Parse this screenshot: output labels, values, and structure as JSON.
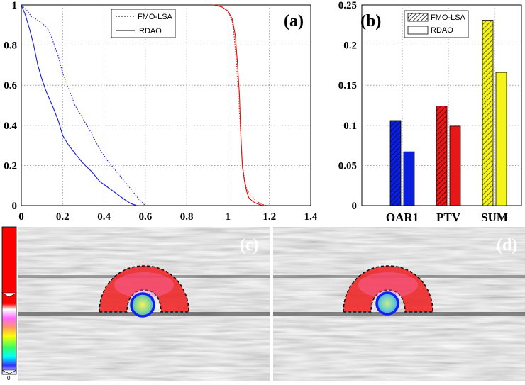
{
  "chart_data": [
    {
      "panel": "(a)",
      "type": "line",
      "xlim": [
        0,
        1.4
      ],
      "ylim": [
        0,
        1
      ],
      "xticks": [
        "0",
        "0.2",
        "0.4",
        "0.6",
        "0.8",
        "1",
        "1.2",
        "1.4"
      ],
      "yticks": [
        "0",
        "0.2",
        "0.4",
        "0.6",
        "0.8",
        "1"
      ],
      "grid": true,
      "legend": "top-left",
      "series": [
        {
          "name": "FMO-LSA",
          "style": "dotted",
          "color": "#1a1adf",
          "x": [
            0,
            0.03,
            0.05,
            0.07,
            0.1,
            0.13,
            0.15,
            0.18,
            0.2,
            0.23,
            0.26,
            0.3,
            0.34,
            0.38,
            0.42,
            0.46,
            0.5,
            0.54,
            0.57,
            0.6
          ],
          "y": [
            1.0,
            0.97,
            0.94,
            0.93,
            0.91,
            0.88,
            0.83,
            0.74,
            0.66,
            0.58,
            0.5,
            0.43,
            0.36,
            0.28,
            0.22,
            0.17,
            0.12,
            0.07,
            0.03,
            0.0
          ]
        },
        {
          "name": "",
          "style": "dotted",
          "color": "#e01010",
          "x": [
            0.93,
            0.97,
            1.0,
            1.02,
            1.03,
            1.04,
            1.05,
            1.06,
            1.065,
            1.07,
            1.08,
            1.09,
            1.11,
            1.13,
            1.15,
            1.17,
            1.19
          ],
          "y": [
            1.0,
            0.99,
            0.97,
            0.92,
            0.84,
            0.72,
            0.55,
            0.38,
            0.28,
            0.2,
            0.13,
            0.08,
            0.05,
            0.03,
            0.015,
            0.005,
            0.0
          ]
        },
        {
          "name": "RDAO",
          "style": "solid",
          "color": "#1a1adf",
          "x": [
            0,
            0.02,
            0.04,
            0.06,
            0.08,
            0.1,
            0.12,
            0.15,
            0.18,
            0.2,
            0.23,
            0.26,
            0.3,
            0.34,
            0.38,
            0.42,
            0.46,
            0.5,
            0.53,
            0.56
          ],
          "y": [
            1.0,
            0.95,
            0.88,
            0.8,
            0.7,
            0.63,
            0.57,
            0.5,
            0.42,
            0.35,
            0.3,
            0.26,
            0.21,
            0.17,
            0.12,
            0.09,
            0.06,
            0.03,
            0.01,
            0.0
          ]
        },
        {
          "name": "",
          "style": "solid",
          "color": "#e01010",
          "x": [
            0.93,
            0.97,
            1.0,
            1.02,
            1.035,
            1.045,
            1.055,
            1.06,
            1.065,
            1.07,
            1.08,
            1.09,
            1.1,
            1.12,
            1.14,
            1.16,
            1.18
          ],
          "y": [
            1.0,
            0.99,
            0.97,
            0.93,
            0.85,
            0.72,
            0.55,
            0.4,
            0.28,
            0.19,
            0.12,
            0.07,
            0.04,
            0.02,
            0.01,
            0.003,
            0.0
          ]
        }
      ]
    },
    {
      "panel": "(b)",
      "type": "bar",
      "categories": [
        "OAR1",
        "PTV",
        "SUM"
      ],
      "ylim": [
        0,
        0.25
      ],
      "yticks": [
        "0",
        "0.05",
        "0.1",
        "0.15",
        "0.2",
        "0.25"
      ],
      "grid": true,
      "legend": "top-right",
      "series": [
        {
          "name": "FMO-LSA",
          "pattern": "hatched",
          "values": [
            0.106,
            0.124,
            0.231
          ]
        },
        {
          "name": "RDAO",
          "pattern": "solid",
          "values": [
            0.067,
            0.099,
            0.166
          ]
        }
      ],
      "bar_colors": {
        "OAR1": {
          "fill": "#0a1ee0",
          "hatch": "#0a0a60"
        },
        "PTV": {
          "fill": "#e81818",
          "hatch": "#5a0808"
        },
        "SUM": {
          "fill": "#f4f418",
          "hatch": "#6a6a10"
        }
      }
    }
  ],
  "images": {
    "c_label": "(c)",
    "d_label": "(d)",
    "colorbar_tick": "0"
  }
}
